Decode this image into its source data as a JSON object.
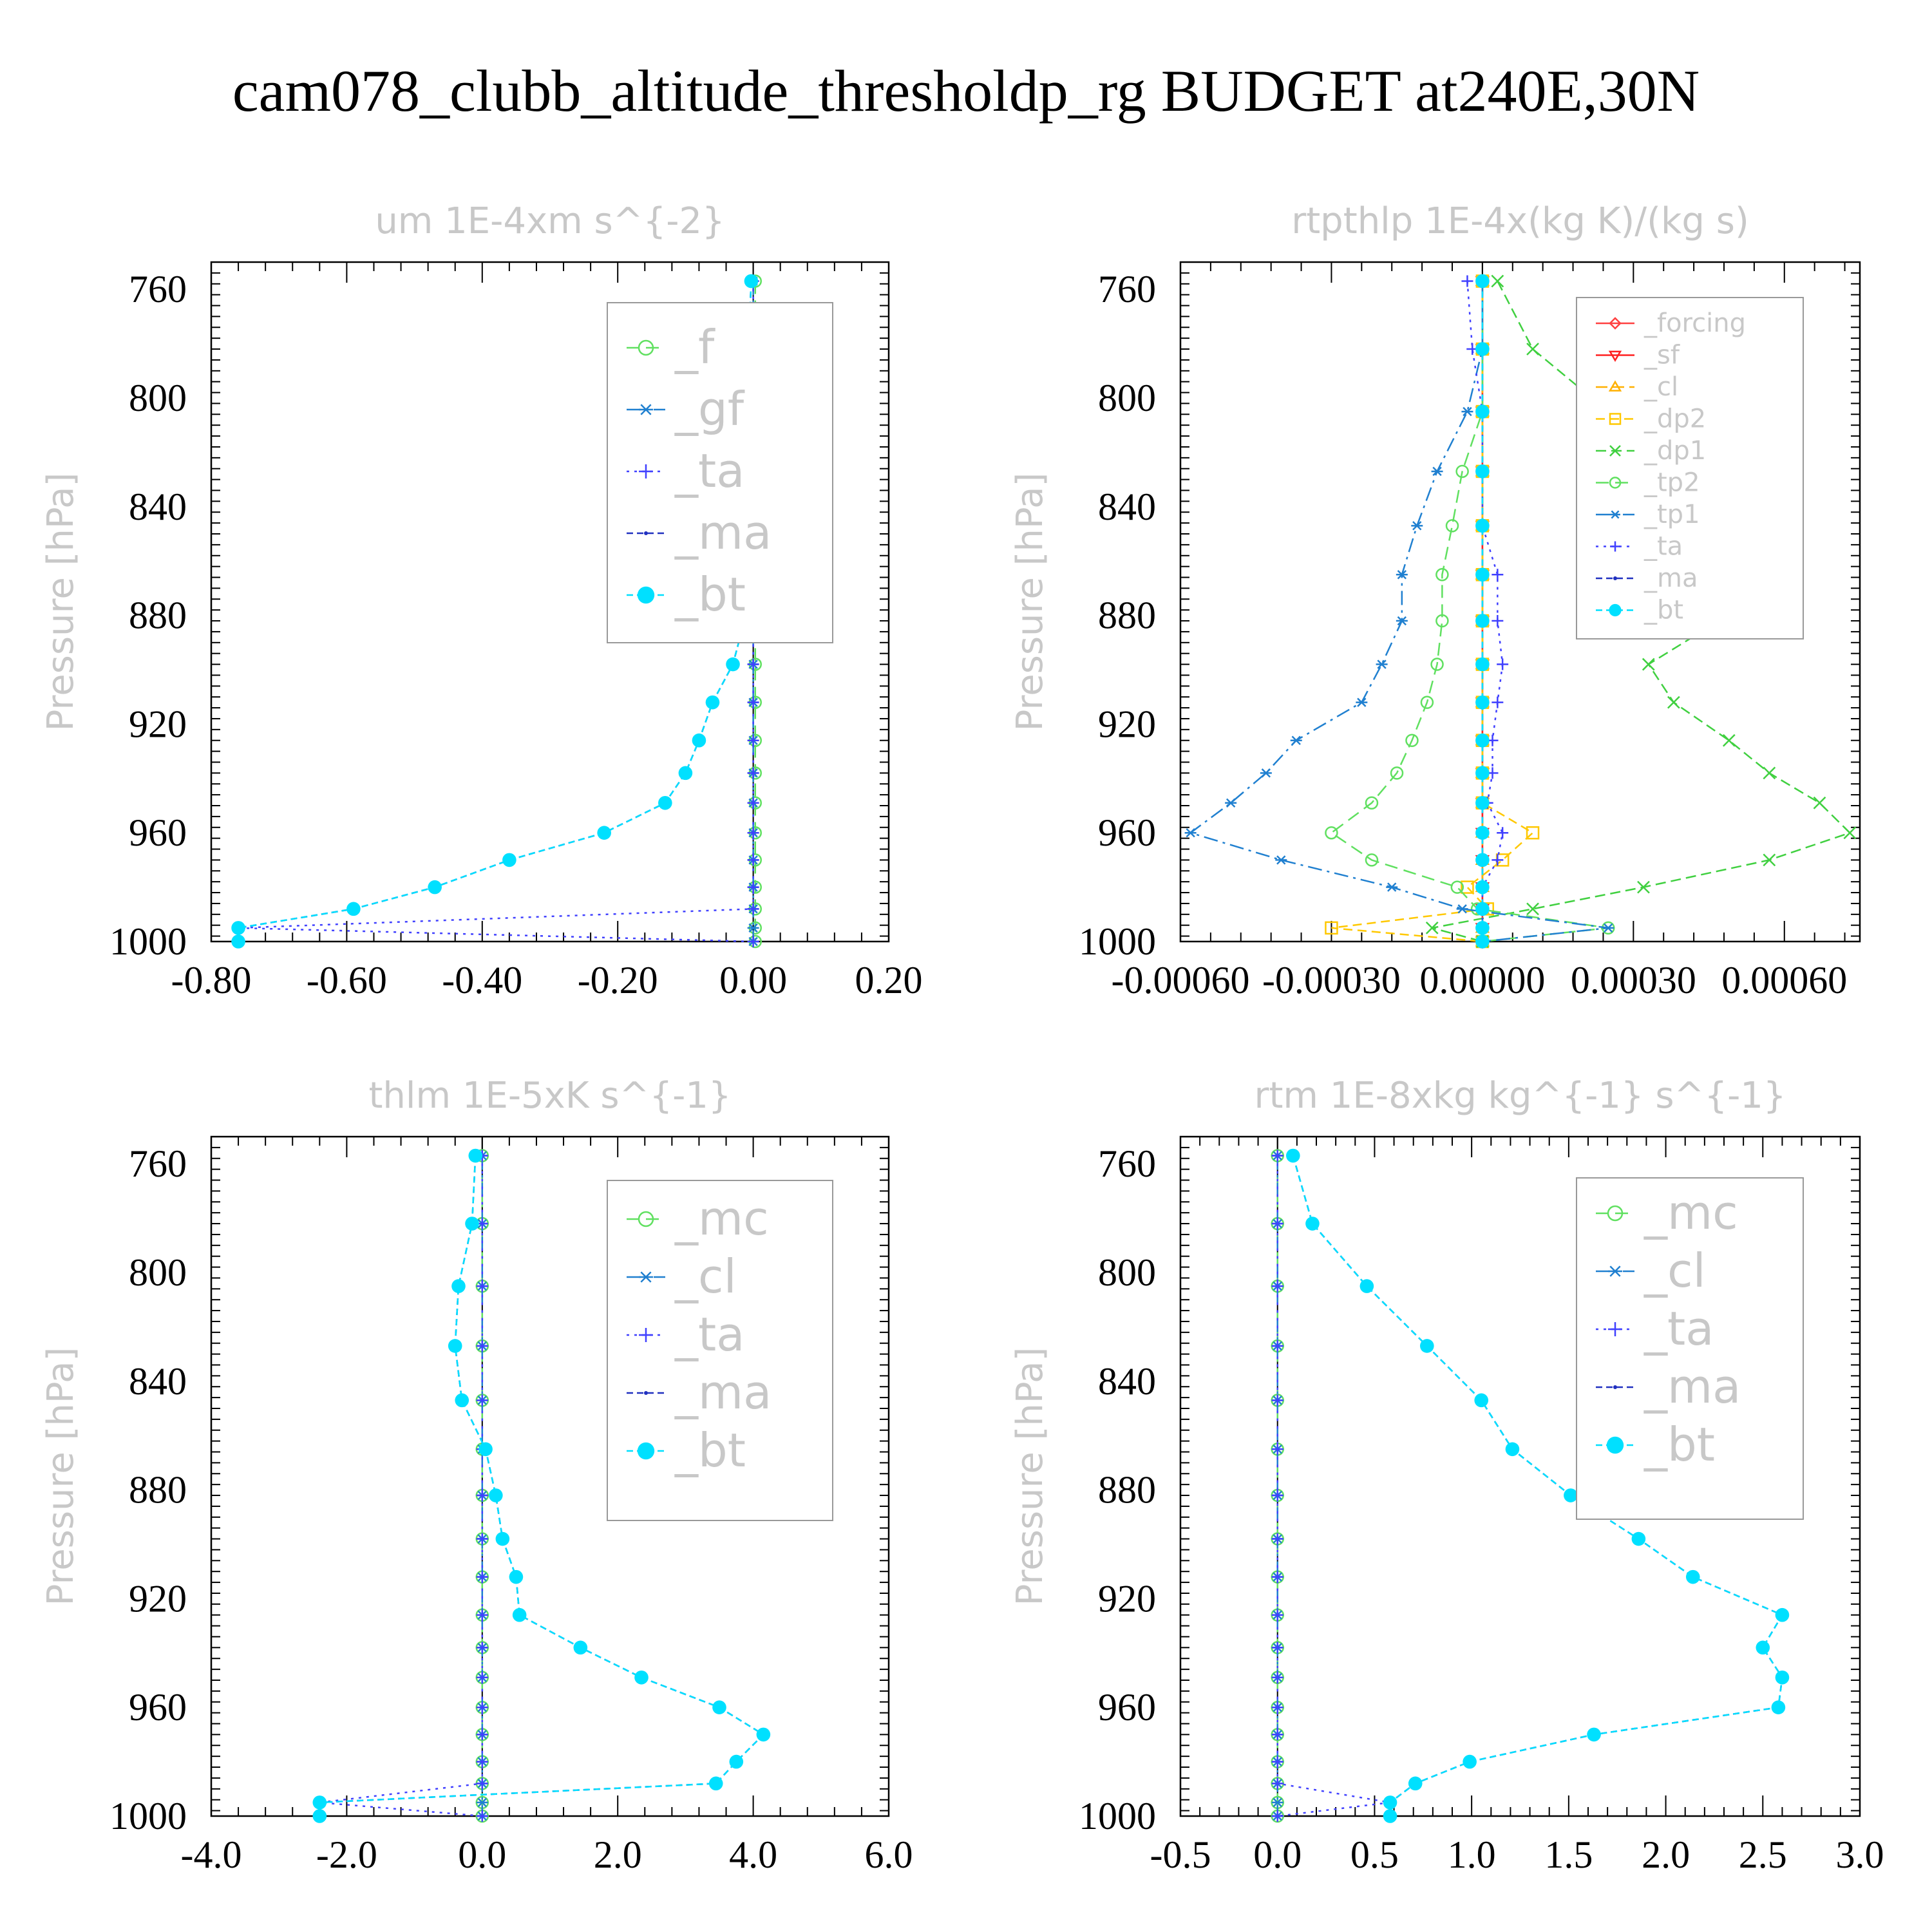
{
  "title": "cam078_clubb_altitude_thresholdp_rg  BUDGET at240E,30N",
  "colors": {
    "forcing": "#ff4040",
    "sf": "#ff2020",
    "cl_orange": "#ffb000",
    "dp2": "#ffc800",
    "green": "#40d040",
    "lightgreen": "#60e060",
    "blue": "#2080d0",
    "purple": "#4040ff",
    "darkblue": "#2030c0",
    "cyan": "#00e0ff",
    "title_gray": "#c8c8c8"
  },
  "chart_data": [
    {
      "type": "line",
      "title": "um  1E-4xm s^{-2}",
      "ylabel": "Pressure [hPa]",
      "xlim": [
        -0.8,
        0.2
      ],
      "ylim": [
        1000,
        750
      ],
      "xticks": [
        "-0.80",
        "-0.60",
        "-0.40",
        "-0.20",
        "0.00",
        "0.20"
      ],
      "yticks": [
        "760",
        "800",
        "840",
        "880",
        "920",
        "960",
        "1000"
      ],
      "pressure": [
        757,
        782,
        805,
        827,
        847,
        865,
        882,
        898,
        912,
        926,
        938,
        949,
        960,
        970,
        980,
        988,
        995,
        1000
      ],
      "legend": {
        "position": "top-right",
        "entries": [
          "_f",
          "_gf",
          "_ta",
          "_ma",
          "_bt"
        ]
      },
      "series": [
        {
          "name": "_f",
          "color": "lightgreen",
          "marker": "circle",
          "values": [
            0.003,
            0.003,
            0.003,
            0.003,
            0.003,
            0.003,
            0.003,
            0.003,
            0.003,
            0.003,
            0.003,
            0.003,
            0.003,
            0.003,
            0.003,
            0.003,
            0.003,
            0.003
          ]
        },
        {
          "name": "_gf",
          "color": "blue",
          "marker": "star",
          "values": [
            0.0,
            0.0,
            0.0,
            0.0,
            0.0,
            0.0,
            0.0,
            0.0,
            0.0,
            0.0,
            0.0,
            0.0,
            0.0,
            0.0,
            0.0,
            0.0,
            0.0,
            0.0
          ]
        },
        {
          "name": "_ta",
          "color": "purple",
          "marker": "plus",
          "values": [
            0.0,
            0.0,
            0.0,
            0.0,
            0.0,
            0.0,
            0.0,
            0.0,
            0.0,
            0.0,
            0.0,
            0.0,
            0.0,
            0.0,
            0.0,
            0.0,
            -0.76,
            0.0
          ]
        },
        {
          "name": "_ma",
          "color": "darkblue",
          "marker": "dot",
          "values": [
            -0.003,
            -0.007,
            -0.012,
            -0.013,
            -0.009,
            -0.006,
            -0.013,
            -0.03,
            -0.06,
            -0.08,
            -0.1,
            -0.13,
            -0.22,
            -0.36,
            -0.47,
            -0.59,
            -0.76,
            -0.76
          ]
        },
        {
          "name": "_bt",
          "color": "cyan",
          "marker": "filled",
          "values": [
            -0.003,
            -0.007,
            -0.012,
            -0.013,
            -0.009,
            -0.006,
            -0.013,
            -0.03,
            -0.06,
            -0.08,
            -0.1,
            -0.13,
            -0.22,
            -0.36,
            -0.47,
            -0.59,
            -0.76,
            -0.76
          ]
        }
      ]
    },
    {
      "type": "line",
      "title": "rtpthlp  1E-4x(kg K)/(kg s)",
      "ylabel": "Pressure [hPa]",
      "xlim": [
        -0.0006,
        0.00075
      ],
      "ylim": [
        1000,
        750
      ],
      "xticks": [
        "-0.00060",
        "-0.00030",
        "0.00000",
        "0.00030",
        "0.00060"
      ],
      "yticks": [
        "760",
        "800",
        "840",
        "880",
        "920",
        "960",
        "1000"
      ],
      "pressure": [
        757,
        782,
        805,
        827,
        847,
        865,
        882,
        898,
        912,
        926,
        938,
        949,
        960,
        970,
        980,
        988,
        995,
        1000
      ],
      "legend": {
        "position": "top-right",
        "entries": [
          "_forcing",
          "_sf",
          "_cl",
          "_dp2",
          "_dp1",
          "_tp2",
          "_tp1",
          "_ta",
          "_ma",
          "_bt"
        ]
      },
      "series": [
        {
          "name": "_forcing",
          "color": "forcing",
          "marker": "diamond",
          "values": [
            0,
            0,
            0,
            0,
            0,
            0,
            0,
            0,
            0,
            0,
            0,
            0,
            0,
            0,
            0,
            0,
            0,
            0
          ]
        },
        {
          "name": "_sf",
          "color": "sf",
          "marker": "tri-down",
          "values": [
            0,
            0,
            0,
            0,
            0,
            0,
            0,
            0,
            0,
            0,
            0,
            0,
            0,
            0,
            0,
            0,
            0,
            0
          ]
        },
        {
          "name": "_cl",
          "color": "cl_orange",
          "marker": "tri-up",
          "values": [
            0,
            0,
            0,
            0,
            0,
            0,
            0,
            0,
            0,
            0,
            0,
            0,
            0,
            0,
            0,
            0,
            0,
            0
          ]
        },
        {
          "name": "_dp2",
          "color": "dp2",
          "marker": "square",
          "values": [
            0,
            0,
            0,
            0,
            0,
            0,
            0,
            0,
            0,
            0,
            0,
            0,
            0.0001,
            4e-05,
            -3e-05,
            1e-05,
            -0.0003,
            0
          ]
        },
        {
          "name": "_dp1",
          "color": "green",
          "marker": "x",
          "values": [
            3e-05,
            0.0001,
            0.00025,
            0.00037,
            0.00043,
            0.00045,
            0.00047,
            0.00033,
            0.00038,
            0.00049,
            0.00057,
            0.00067,
            0.00073,
            0.00057,
            0.00032,
            0.0001,
            -0.0001,
            0
          ]
        },
        {
          "name": "_tp2",
          "color": "lightgreen",
          "marker": "circle",
          "values": [
            0,
            0,
            0,
            -4e-05,
            -6e-05,
            -8e-05,
            -8e-05,
            -9e-05,
            -0.00011,
            -0.00014,
            -0.00017,
            -0.00022,
            -0.0003,
            -0.00022,
            -5e-05,
            -1e-05,
            0.00025,
            0
          ]
        },
        {
          "name": "_tp1",
          "color": "blue",
          "marker": "star",
          "values": [
            0,
            0,
            -3e-05,
            -9e-05,
            -0.00013,
            -0.00016,
            -0.00016,
            -0.0002,
            -0.00024,
            -0.00037,
            -0.00043,
            -0.0005,
            -0.00058,
            -0.0004,
            -0.00018,
            -4e-05,
            0.00025,
            0
          ]
        },
        {
          "name": "_ta",
          "color": "purple",
          "marker": "plus",
          "values": [
            -3e-05,
            -2e-05,
            0,
            0,
            0,
            3e-05,
            3e-05,
            4e-05,
            3e-05,
            2e-05,
            2e-05,
            1e-05,
            4e-05,
            3e-05,
            0,
            0,
            0,
            0
          ]
        },
        {
          "name": "_ma",
          "color": "darkblue",
          "marker": "dot",
          "values": [
            0,
            0,
            0,
            0,
            0,
            0,
            0,
            0,
            0,
            0,
            0,
            0,
            0,
            0,
            0,
            0,
            0,
            0
          ]
        },
        {
          "name": "_bt",
          "color": "cyan",
          "marker": "filled",
          "values": [
            0,
            0,
            0,
            0,
            0,
            0,
            0,
            0,
            0,
            0,
            0,
            0,
            0,
            0,
            0,
            0,
            0,
            0
          ]
        }
      ]
    },
    {
      "type": "line",
      "title": "thlm  1E-5xK s^{-1}",
      "ylabel": "Pressure [hPa]",
      "xlim": [
        -4.0,
        6.0
      ],
      "ylim": [
        1000,
        750
      ],
      "xticks": [
        "-4.0",
        "-2.0",
        "0.0",
        "2.0",
        "4.0",
        "6.0"
      ],
      "yticks": [
        "760",
        "800",
        "840",
        "880",
        "920",
        "960",
        "1000"
      ],
      "pressure": [
        757,
        782,
        805,
        827,
        847,
        865,
        882,
        898,
        912,
        926,
        938,
        949,
        960,
        970,
        980,
        988,
        995,
        1000
      ],
      "legend": {
        "position": "top-right",
        "entries": [
          "_mc",
          "_cl",
          "_ta",
          "_ma",
          "_bt"
        ]
      },
      "series": [
        {
          "name": "_mc",
          "color": "lightgreen",
          "marker": "circle",
          "values": [
            0,
            0,
            0,
            0,
            0,
            0,
            0,
            0,
            0,
            0,
            0,
            0,
            0,
            0,
            0,
            0,
            0,
            0
          ]
        },
        {
          "name": "_cl",
          "color": "blue",
          "marker": "star",
          "values": [
            0,
            0,
            0,
            0,
            0,
            0,
            0,
            0,
            0,
            0,
            0,
            0,
            0,
            0,
            0,
            0,
            0,
            0
          ]
        },
        {
          "name": "_ta",
          "color": "purple",
          "marker": "plus",
          "values": [
            0,
            0,
            0,
            0,
            0,
            0,
            0,
            0,
            0,
            0,
            0,
            0,
            0,
            0,
            0,
            0,
            -2.4,
            0
          ]
        },
        {
          "name": "_ma",
          "color": "darkblue",
          "marker": "dot",
          "values": [
            -0.1,
            -0.15,
            -0.35,
            -0.4,
            -0.3,
            0.05,
            0.2,
            0.3,
            0.5,
            0.55,
            1.45,
            2.35,
            3.5,
            4.15,
            3.75,
            3.45,
            -2.4,
            -2.4
          ]
        },
        {
          "name": "_bt",
          "color": "cyan",
          "marker": "filled",
          "values": [
            -0.1,
            -0.15,
            -0.35,
            -0.4,
            -0.3,
            0.05,
            0.2,
            0.3,
            0.5,
            0.55,
            1.45,
            2.35,
            3.5,
            4.15,
            3.75,
            3.45,
            -2.4,
            -2.4
          ]
        }
      ]
    },
    {
      "type": "line",
      "title": "rtm  1E-8xkg kg^{-1} s^{-1}",
      "ylabel": "Pressure [hPa]",
      "xlim": [
        -0.5,
        3.0
      ],
      "ylim": [
        1000,
        750
      ],
      "xticks": [
        "-0.5",
        "0.0",
        "0.5",
        "1.0",
        "1.5",
        "2.0",
        "2.5",
        "3.0"
      ],
      "yticks": [
        "760",
        "800",
        "840",
        "880",
        "920",
        "960",
        "1000"
      ],
      "pressure": [
        757,
        782,
        805,
        827,
        847,
        865,
        882,
        898,
        912,
        926,
        938,
        949,
        960,
        970,
        980,
        988,
        995,
        1000
      ],
      "legend": {
        "position": "top-right",
        "entries": [
          "_mc",
          "_cl",
          "_ta",
          "_ma",
          "_bt"
        ]
      },
      "series": [
        {
          "name": "_mc",
          "color": "lightgreen",
          "marker": "circle",
          "values": [
            0,
            0,
            0,
            0,
            0,
            0,
            0,
            0,
            0,
            0,
            0,
            0,
            0,
            0,
            0,
            0,
            0,
            0
          ]
        },
        {
          "name": "_cl",
          "color": "blue",
          "marker": "star",
          "values": [
            0,
            0,
            0,
            0,
            0,
            0,
            0,
            0,
            0,
            0,
            0,
            0,
            0,
            0,
            0,
            0,
            0,
            0
          ]
        },
        {
          "name": "_ta",
          "color": "purple",
          "marker": "plus",
          "values": [
            0,
            0,
            0,
            0,
            0,
            0,
            0,
            0,
            0,
            0,
            0,
            0,
            0,
            0,
            0,
            0,
            0.58,
            0
          ]
        },
        {
          "name": "_ma",
          "color": "darkblue",
          "marker": "dot",
          "values": [
            0.08,
            0.18,
            0.46,
            0.77,
            1.05,
            1.21,
            1.51,
            1.86,
            2.14,
            2.6,
            2.5,
            2.6,
            2.58,
            1.63,
            0.99,
            0.71,
            0.58,
            0.58
          ]
        },
        {
          "name": "_bt",
          "color": "cyan",
          "marker": "filled",
          "values": [
            0.08,
            0.18,
            0.46,
            0.77,
            1.05,
            1.21,
            1.51,
            1.86,
            2.14,
            2.6,
            2.5,
            2.6,
            2.58,
            1.63,
            0.99,
            0.71,
            0.58,
            0.58
          ]
        }
      ]
    }
  ]
}
